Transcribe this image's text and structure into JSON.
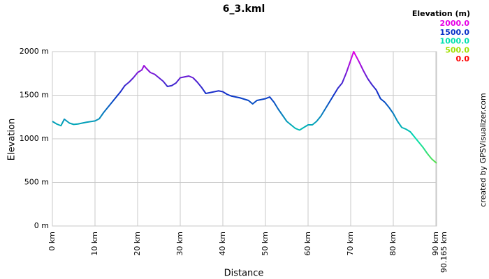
{
  "chart_data": {
    "type": "line",
    "title": "6_3.kml",
    "x_label": "Distance",
    "y_label": "Elevation",
    "credit": "created by GPSVisualizer.com",
    "legend_title": "Elevation (m)",
    "color_scale": [
      {
        "value": 2000,
        "label": "2000.0",
        "color": "#e600e6"
      },
      {
        "value": 1500,
        "label": "1500.0",
        "color": "#0a32c8"
      },
      {
        "value": 1000,
        "label": "1000.0",
        "color": "#00e0b0"
      },
      {
        "value": 500,
        "label": "500.0",
        "color": "#a0e000"
      },
      {
        "value": 0,
        "label": "0.0",
        "color": "#ff0000"
      }
    ],
    "x": [
      0,
      1,
      2,
      2.8,
      4,
      5,
      6,
      8,
      10,
      11,
      12,
      14,
      16,
      17,
      18,
      19,
      20,
      21,
      21.5,
      22,
      23,
      24,
      25,
      26,
      27,
      28,
      29,
      30,
      31,
      32,
      33,
      34,
      35,
      36,
      37,
      38,
      39,
      40,
      41,
      42,
      44,
      46,
      47,
      48,
      49,
      50,
      51,
      52,
      53,
      54,
      55,
      56,
      57,
      58,
      59,
      60,
      61,
      62,
      63,
      64,
      65,
      66,
      67,
      68,
      69,
      70,
      70.7,
      72,
      73,
      74,
      75,
      76,
      77,
      78,
      79,
      80,
      81,
      82,
      83,
      84,
      85,
      86,
      87,
      88,
      89,
      90.165
    ],
    "values": [
      1200,
      1170,
      1150,
      1225,
      1180,
      1165,
      1170,
      1190,
      1205,
      1230,
      1300,
      1420,
      1540,
      1610,
      1650,
      1700,
      1760,
      1790,
      1840,
      1810,
      1760,
      1740,
      1700,
      1660,
      1600,
      1610,
      1640,
      1700,
      1710,
      1720,
      1700,
      1650,
      1590,
      1520,
      1530,
      1540,
      1550,
      1540,
      1510,
      1490,
      1470,
      1440,
      1400,
      1440,
      1450,
      1460,
      1480,
      1420,
      1340,
      1270,
      1200,
      1160,
      1120,
      1100,
      1130,
      1160,
      1160,
      1200,
      1260,
      1340,
      1420,
      1500,
      1580,
      1640,
      1760,
      1900,
      2000,
      1880,
      1780,
      1690,
      1620,
      1560,
      1460,
      1420,
      1360,
      1290,
      1200,
      1130,
      1110,
      1080,
      1020,
      960,
      900,
      830,
      770,
      720
    ],
    "xlim": [
      0,
      90.165
    ],
    "ylim": [
      0,
      2000
    ],
    "xticks": [
      {
        "value": 0,
        "label": "0 km"
      },
      {
        "value": 10,
        "label": "10 km"
      },
      {
        "value": 20,
        "label": "20 km"
      },
      {
        "value": 30,
        "label": "30 km"
      },
      {
        "value": 40,
        "label": "40 km"
      },
      {
        "value": 50,
        "label": "50 km"
      },
      {
        "value": 60,
        "label": "60 km"
      },
      {
        "value": 70,
        "label": "70 km"
      },
      {
        "value": 80,
        "label": "80 km"
      },
      {
        "value": 90,
        "label": "90 km"
      },
      {
        "value": 90.165,
        "label": "90.165 km"
      }
    ],
    "yticks": [
      {
        "value": 0,
        "label": "0 m"
      },
      {
        "value": 500,
        "label": "500 m"
      },
      {
        "value": 1000,
        "label": "1000 m"
      },
      {
        "value": 1500,
        "label": "1500 m"
      },
      {
        "value": 2000,
        "label": "2000 m"
      }
    ],
    "grid": true
  }
}
